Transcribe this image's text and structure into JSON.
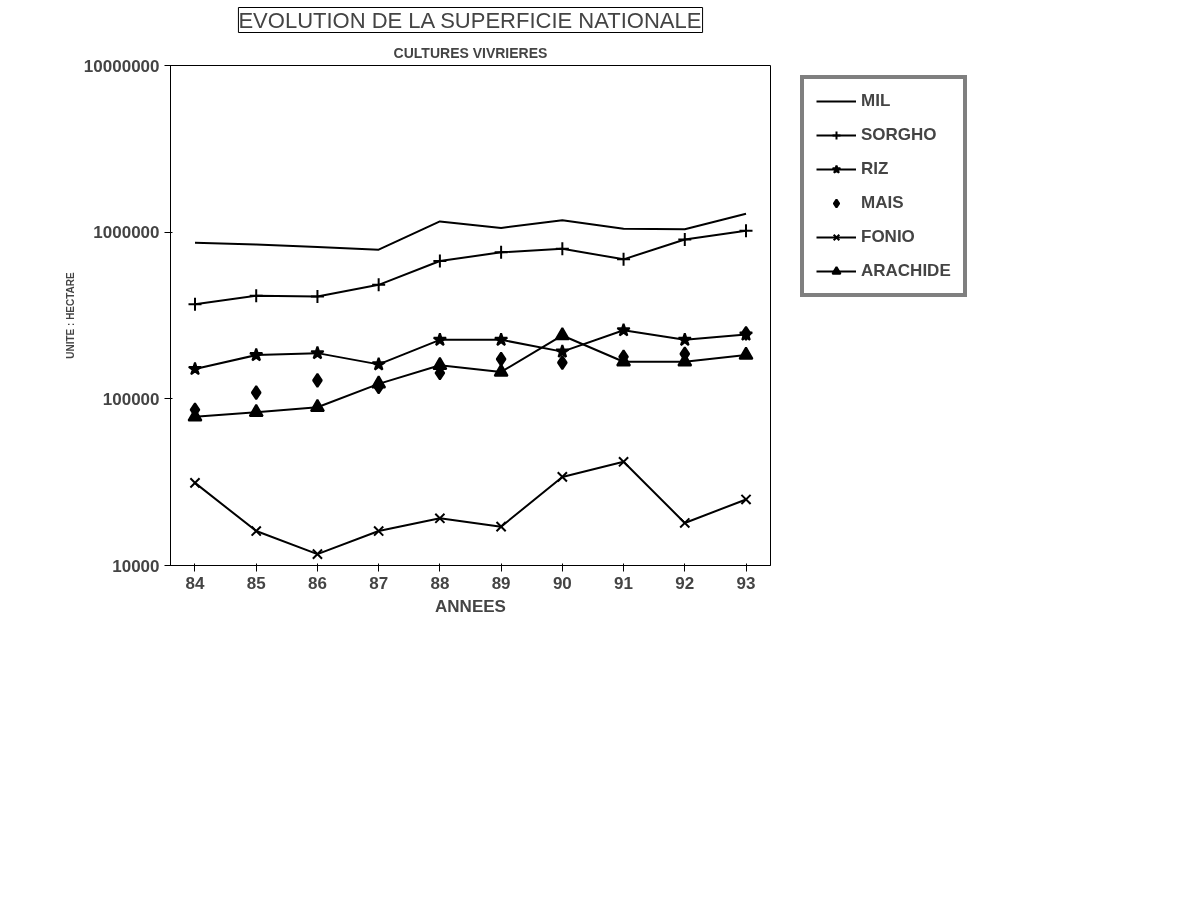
{
  "chart_data": {
    "type": "line",
    "title": "EVOLUTION DE LA SUPERFICIE NATIONALE",
    "subtitle": "CULTURES VIVRIERES",
    "xlabel": "ANNEES",
    "ylabel": "UNITE : HECTARE",
    "x": [
      84,
      85,
      86,
      87,
      88,
      89,
      90,
      91,
      92,
      93
    ],
    "xlim": [
      83.6,
      93.4
    ],
    "xticks": [
      84,
      85,
      86,
      87,
      88,
      89,
      90,
      91,
      92,
      93
    ],
    "ylim": [
      10000,
      10000000
    ],
    "yticks": [
      10000,
      100000,
      1000000,
      10000000
    ],
    "log": true,
    "grid": false,
    "legend": "right",
    "series": [
      {
        "name": "MIL",
        "color": "#000000",
        "marker": "none",
        "values": [
          863000,
          843000,
          815000,
          785000,
          1160000,
          1060000,
          1180000,
          1050000,
          1040000,
          1290000
        ]
      },
      {
        "name": "SORGHO",
        "color": "#000000",
        "marker": "cross",
        "values": [
          369000,
          415000,
          411000,
          483000,
          671000,
          757000,
          796000,
          687000,
          904000,
          1020000
        ]
      },
      {
        "name": "RIZ",
        "color": "#000000",
        "marker": "star",
        "values": [
          151000,
          183000,
          188000,
          161000,
          226000,
          226000,
          192000,
          258000,
          226000,
          243000
        ]
      },
      {
        "name": "MAIS",
        "type": "scatter",
        "color": "#000000",
        "marker": "diamond",
        "values": [
          86000,
          109000,
          129000,
          118000,
          143000,
          173000,
          165000,
          179000,
          186000,
          247000
        ]
      },
      {
        "name": "FONIO",
        "color": "#000000",
        "marker": "x",
        "values": [
          31300,
          16100,
          11700,
          16100,
          19200,
          17100,
          34000,
          41900,
          18000,
          24900
        ]
      },
      {
        "name": "ARACHIDE",
        "color": "#000000",
        "marker": "triangle",
        "values": [
          78000,
          83000,
          89000,
          123000,
          159000,
          145000,
          240000,
          167000,
          167000,
          183000
        ]
      }
    ]
  }
}
